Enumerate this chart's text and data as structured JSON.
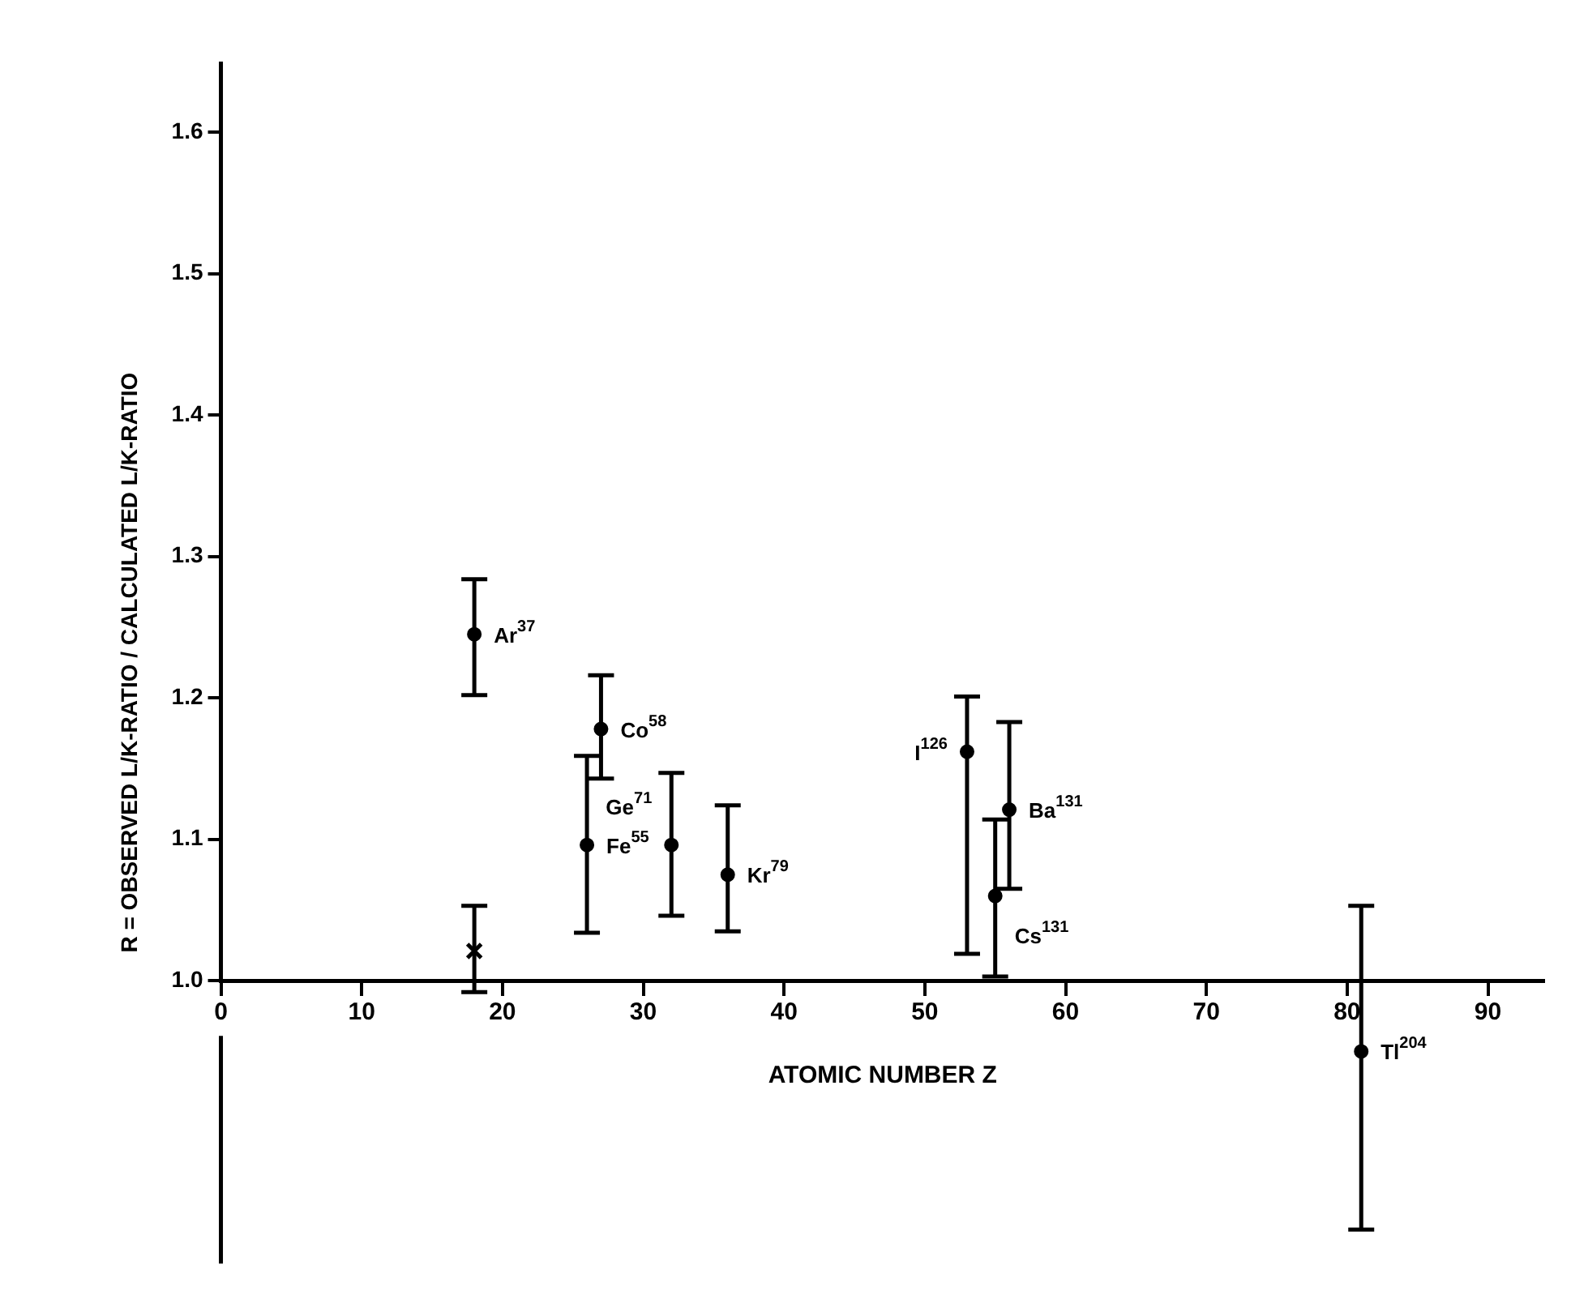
{
  "chart_data": {
    "type": "scatter",
    "xlabel": "ATOMIC NUMBER Z",
    "ylabel": "R = OBSERVED L/K-RATIO / CALCULATED L/K-RATIO",
    "xlim": [
      0,
      94
    ],
    "xticks": [
      0,
      10,
      20,
      30,
      40,
      50,
      60,
      70,
      80,
      90
    ],
    "ylim": [
      0.8,
      1.65
    ],
    "yticks": [
      {
        "value": 1,
        "label": "1.0"
      },
      1.1,
      1.2,
      1.3,
      1.4,
      1.5,
      1.6
    ],
    "grid": false,
    "legend": false,
    "marker": "circle",
    "series": [
      {
        "name": "Ar$^{37}$",
        "color": "#000000",
        "x": [
          18
        ],
        "values": [
          1.245
        ],
        "errors": [
          [
            1.202,
            1.284
          ]
        ]
      },
      {
        "name": "Fe$^{55}$",
        "color": "#000000",
        "x": [
          26
        ],
        "values": [
          1.096
        ],
        "errors": [
          [
            1.034,
            1.159
          ]
        ]
      },
      {
        "name": "Co$^{58}$",
        "color": "#000000",
        "x": [
          27
        ],
        "values": [
          1.178
        ],
        "errors": [
          [
            1.143,
            1.216
          ]
        ]
      },
      {
        "name": "Ge$^{71}$",
        "color": "#000000",
        "x": [
          32
        ],
        "values": [
          1.096
        ],
        "errors": [
          [
            1.046,
            1.147
          ]
        ]
      },
      {
        "name": "Kr$^{79}$",
        "color": "#000000",
        "x": [
          36
        ],
        "values": [
          1.075
        ],
        "errors": [
          [
            1.035,
            1.124
          ]
        ]
      },
      {
        "name": "I$^{126}$",
        "color": "#000000",
        "x": [
          53
        ],
        "values": [
          1.162
        ],
        "errors": [
          [
            1.019,
            1.201
          ]
        ]
      },
      {
        "name": "Cs$^{131}$",
        "color": "#000000",
        "x": [
          55
        ],
        "values": [
          1.06
        ],
        "errors": [
          [
            1.003,
            1.114
          ]
        ]
      },
      {
        "name": "Ba$^{131}$",
        "color": "#000000",
        "x": [
          56
        ],
        "values": [
          1.121
        ],
        "errors": [
          [
            1.065,
            1.183
          ]
        ]
      },
      {
        "name": "Tl$^{204}$",
        "color": "#000000",
        "x": [
          81
        ],
        "values": [
          0.95
        ],
        "errors": [
          [
            0.824,
            1.053
          ]
        ]
      },
      {
        "color": "#000000",
        "marker": "cross",
        "x": [
          18
        ],
        "values": [
          1.021
        ],
        "errors": [
          [
            0.992,
            1.053
          ]
        ]
      }
    ]
  }
}
